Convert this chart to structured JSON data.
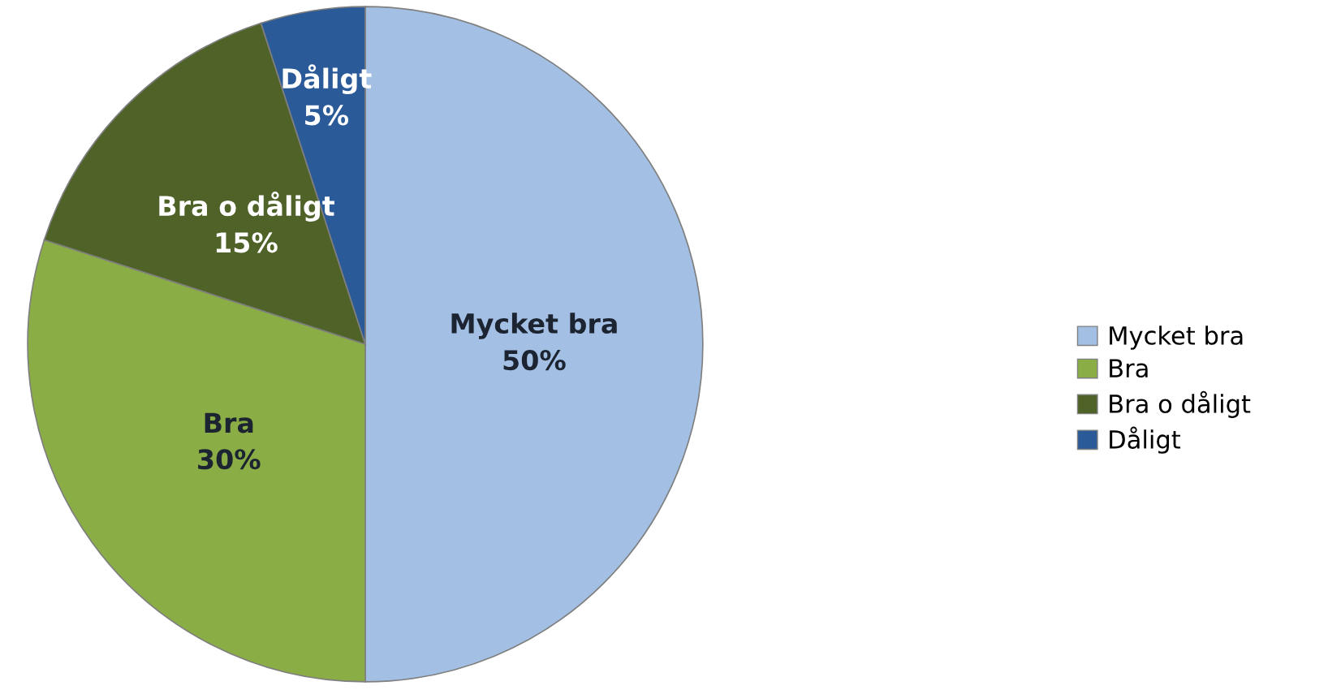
{
  "chart_data": {
    "type": "pie",
    "categories": [
      "Mycket bra",
      "Bra",
      "Bra o dåligt",
      "Dåligt"
    ],
    "values": [
      50,
      30,
      15,
      5
    ],
    "value_labels": [
      "50%",
      "30%",
      "15%",
      "5%"
    ],
    "colors": [
      "#a3c0e4",
      "#8aad45",
      "#4f6228",
      "#2a5a98"
    ],
    "legend": "right"
  }
}
